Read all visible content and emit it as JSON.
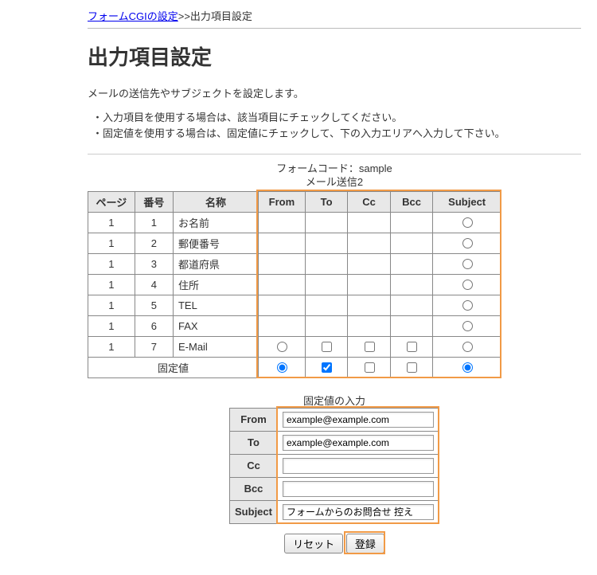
{
  "breadcrumb": {
    "link_text": "フォームCGIの設定",
    "sep": ">>",
    "current": "出力項目設定"
  },
  "heading": "出力項目設定",
  "intro": "メールの送信先やサブジェクトを設定します。",
  "bullets": [
    "・入力項目を使用する場合は、該当項目にチェックしてください。",
    "・固定値を使用する場合は、固定値にチェックして、下の入力エリアへ入力して下さい。"
  ],
  "meta": {
    "form_code_label": "フォームコード：",
    "form_code_value": "sample",
    "mail_send_label": "メール送信",
    "mail_send_num": "2"
  },
  "table": {
    "headers": {
      "page": "ページ",
      "num": "番号",
      "name": "名称",
      "from": "From",
      "to": "To",
      "cc": "Cc",
      "bcc": "Bcc",
      "subject": "Subject"
    },
    "rows": [
      {
        "page": "1",
        "num": "1",
        "name": "お名前",
        "from": "",
        "to": "",
        "cc": "",
        "bcc": "",
        "subject": "radio"
      },
      {
        "page": "1",
        "num": "2",
        "name": "郵便番号",
        "from": "",
        "to": "",
        "cc": "",
        "bcc": "",
        "subject": "radio"
      },
      {
        "page": "1",
        "num": "3",
        "name": "都道府県",
        "from": "",
        "to": "",
        "cc": "",
        "bcc": "",
        "subject": "radio"
      },
      {
        "page": "1",
        "num": "4",
        "name": "住所",
        "from": "",
        "to": "",
        "cc": "",
        "bcc": "",
        "subject": "radio"
      },
      {
        "page": "1",
        "num": "5",
        "name": "TEL",
        "from": "",
        "to": "",
        "cc": "",
        "bcc": "",
        "subject": "radio"
      },
      {
        "page": "1",
        "num": "6",
        "name": "FAX",
        "from": "",
        "to": "",
        "cc": "",
        "bcc": "",
        "subject": "radio"
      },
      {
        "page": "1",
        "num": "7",
        "name": "E-Mail",
        "from": "radio",
        "to": "checkbox",
        "cc": "checkbox",
        "bcc": "checkbox",
        "subject": "radio"
      }
    ],
    "fixed_row_label": "固定値",
    "fixed_row": {
      "from": "radio-checked",
      "to": "checkbox-checked",
      "cc": "checkbox",
      "bcc": "checkbox",
      "subject": "radio-checked"
    }
  },
  "fixed_section": {
    "title": "固定値の入力",
    "rows": [
      {
        "label": "From",
        "value": "example@example.com"
      },
      {
        "label": "To",
        "value": "example@example.com"
      },
      {
        "label": "Cc",
        "value": ""
      },
      {
        "label": "Bcc",
        "value": ""
      },
      {
        "label": "Subject",
        "value": "フォームからのお問合せ 控え"
      }
    ]
  },
  "buttons": {
    "reset": "リセット",
    "submit": "登録"
  },
  "highlight_color": "#f19a46"
}
